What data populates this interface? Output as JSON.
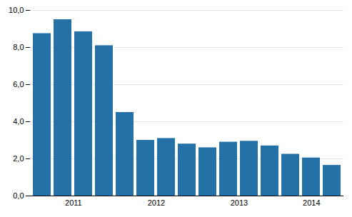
{
  "chart_data": {
    "type": "bar",
    "categories": [
      "2011",
      null,
      null,
      null,
      "2012",
      null,
      null,
      null,
      "2013",
      null,
      null,
      null,
      "2014",
      null,
      null
    ],
    "values": [
      8.75,
      9.5,
      8.85,
      8.1,
      4.5,
      3.0,
      3.1,
      2.8,
      2.6,
      2.9,
      2.95,
      2.7,
      2.25,
      2.05,
      1.65
    ],
    "color": "#2471a8",
    "ylim": [
      0,
      10.0
    ],
    "yticks": [
      {
        "value": 0.0,
        "label": "0,0"
      },
      {
        "value": 2.0,
        "label": "2,0"
      },
      {
        "value": 4.0,
        "label": "4,0"
      },
      {
        "value": 6.0,
        "label": "6,0"
      },
      {
        "value": 8.0,
        "label": "8,0"
      },
      {
        "value": 10.0,
        "label": "10,0"
      }
    ],
    "grid": true
  }
}
